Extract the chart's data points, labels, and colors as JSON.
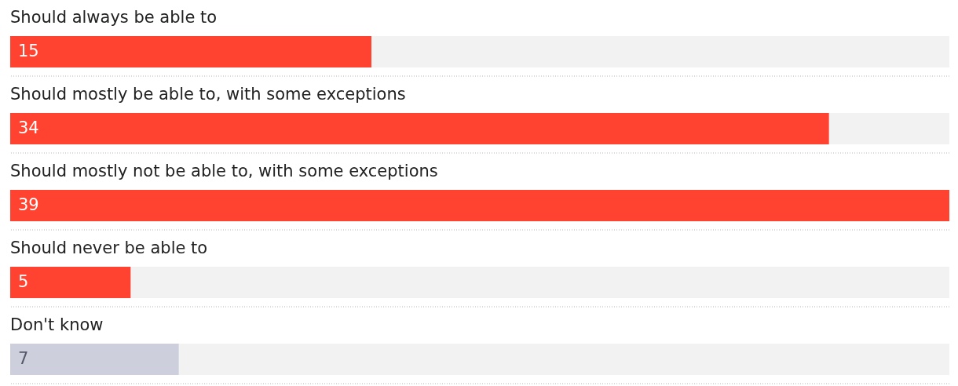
{
  "chart_data": {
    "type": "bar",
    "orientation": "horizontal",
    "categories": [
      "Should always be able to",
      "Should mostly be able to, with some exceptions",
      "Should mostly not be able to, with some exceptions",
      "Should never be able to",
      "Don't know"
    ],
    "values": [
      15,
      34,
      39,
      5,
      7
    ],
    "colors": [
      "#ff4330",
      "#ff4330",
      "#ff4330",
      "#ff4330",
      "#cdd0dc"
    ],
    "xlim": [
      0,
      39
    ],
    "data_labels": true
  }
}
